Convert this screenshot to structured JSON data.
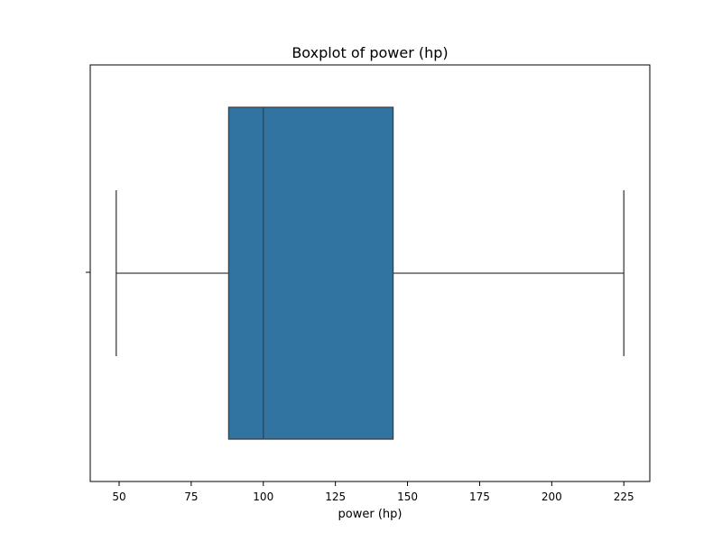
{
  "chart_data": {
    "type": "boxplot",
    "title": "Boxplot of power (hp)",
    "xlabel": "power (hp)",
    "ylabel": "",
    "xlim": [
      40,
      234
    ],
    "xticks": [
      50,
      75,
      100,
      125,
      150,
      175,
      200,
      225
    ],
    "grid": false,
    "orientation": "horizontal",
    "box": {
      "whisker_low": 49,
      "q1": 88,
      "median": 100,
      "q3": 145,
      "whisker_high": 225
    },
    "colors": {
      "box_fill": "#3274a1",
      "line": "#3f3f3f",
      "axes": "#000000"
    }
  }
}
